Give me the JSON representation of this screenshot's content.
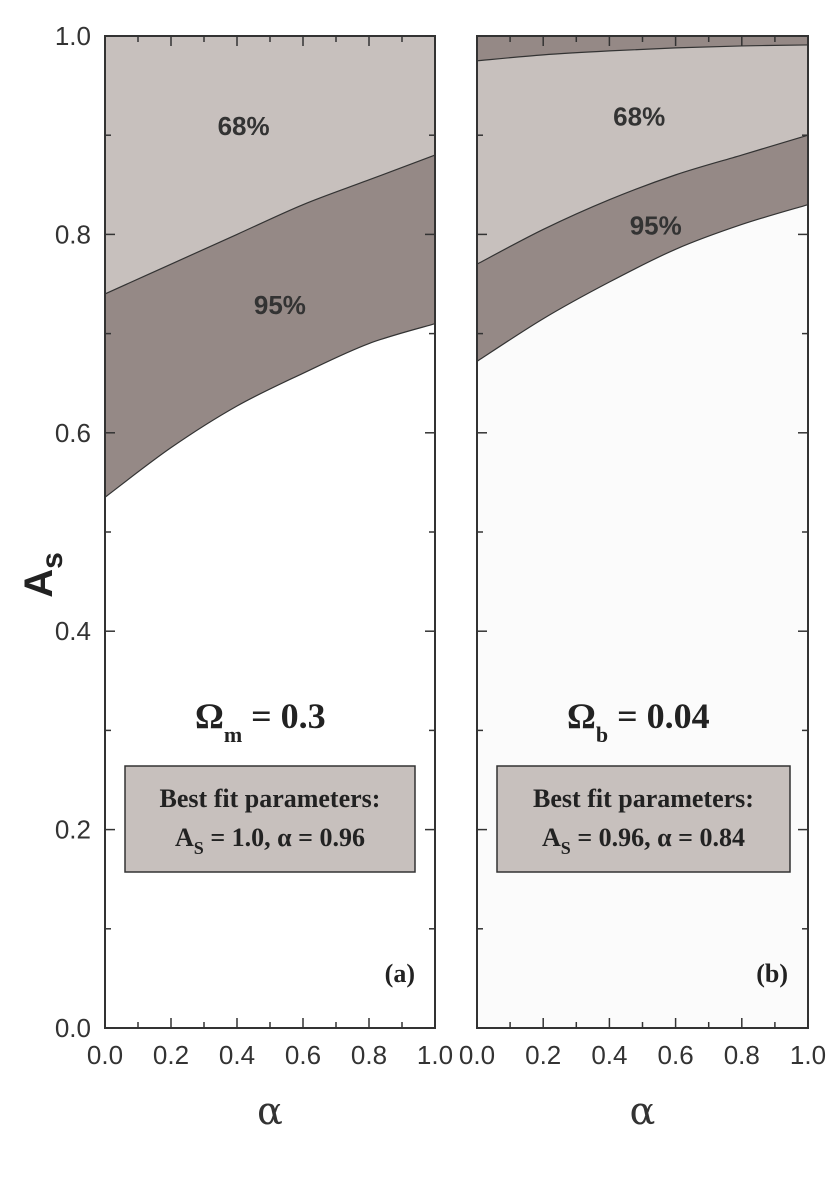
{
  "colors": {
    "region_68": "#c7c0bd",
    "region_95": "#958986",
    "excluded": "#ffffff",
    "panel_b_background": "#fbfbfb",
    "top_band_b": "#958986",
    "box_fill": "#c7c0bd",
    "frame": "#333333"
  },
  "chart_data": [
    {
      "type": "area",
      "panel": "(a)",
      "xlabel": "α",
      "ylabel": "A",
      "ylabel_sub": "s",
      "xlim": [
        0.0,
        1.0
      ],
      "ylim": [
        0.0,
        1.0
      ],
      "x_ticks": [
        "0.0",
        "0.2",
        "0.4",
        "0.6",
        "0.8",
        "1.0"
      ],
      "y_ticks": [
        "0.0",
        "0.2",
        "0.4",
        "0.6",
        "0.8",
        "1.0"
      ],
      "regions": [
        {
          "name": "68%",
          "color_key": "region_68",
          "lower_boundary": {
            "x": [
              0.0,
              0.2,
              0.4,
              0.6,
              0.8,
              1.0
            ],
            "y": [
              0.74,
              0.77,
              0.8,
              0.83,
              0.855,
              0.88
            ]
          },
          "upper": 1.0
        },
        {
          "name": "95%",
          "color_key": "region_95",
          "lower_boundary": {
            "x": [
              0.0,
              0.2,
              0.4,
              0.6,
              0.8,
              1.0
            ],
            "y": [
              0.535,
              0.585,
              0.627,
              0.66,
              0.69,
              0.71
            ]
          }
        }
      ],
      "labels": [
        {
          "text": "68%",
          "x": 0.42,
          "y": 0.9
        },
        {
          "text": "95%",
          "x": 0.53,
          "y": 0.72
        }
      ],
      "parameter": {
        "symbol": "Ω",
        "sub": "m",
        "rest": " = 0.3"
      },
      "box": {
        "line1": "Best fit parameters:",
        "line2_pre": "A",
        "line2_sub": "S",
        "line2_post": " = 1.0, α = 0.96"
      },
      "tag": "(a)"
    },
    {
      "type": "area",
      "panel": "(b)",
      "xlabel": "α",
      "xlim": [
        0.0,
        1.0
      ],
      "ylim": [
        0.0,
        1.0
      ],
      "x_ticks": [
        "0.0",
        "0.2",
        "0.4",
        "0.6",
        "0.8",
        "1.0"
      ],
      "regions": [
        {
          "name": "95% (upper)",
          "color_key": "top_band_b",
          "lower_boundary": {
            "x": [
              0.0,
              0.2,
              0.4,
              0.6,
              0.8,
              1.0
            ],
            "y": [
              0.975,
              0.981,
              0.985,
              0.988,
              0.99,
              0.991
            ]
          },
          "upper": 1.0
        },
        {
          "name": "68%",
          "color_key": "region_68",
          "lower_boundary": {
            "x": [
              0.0,
              0.2,
              0.4,
              0.6,
              0.8,
              1.0
            ],
            "y": [
              0.77,
              0.805,
              0.835,
              0.86,
              0.88,
              0.9
            ]
          }
        },
        {
          "name": "95%",
          "color_key": "region_95",
          "lower_boundary": {
            "x": [
              0.0,
              0.2,
              0.4,
              0.6,
              0.8,
              1.0
            ],
            "y": [
              0.672,
              0.715,
              0.752,
              0.785,
              0.81,
              0.83
            ]
          }
        }
      ],
      "labels": [
        {
          "text": "68%",
          "x": 0.49,
          "y": 0.91
        },
        {
          "text": "95%",
          "x": 0.54,
          "y": 0.8
        }
      ],
      "parameter": {
        "symbol": "Ω",
        "sub": "b",
        "rest": " = 0.04"
      },
      "box": {
        "line1": "Best fit parameters:",
        "line2_pre": "A",
        "line2_sub": "S",
        "line2_post": " = 0.96, α = 0.84"
      },
      "tag": "(b)"
    }
  ]
}
